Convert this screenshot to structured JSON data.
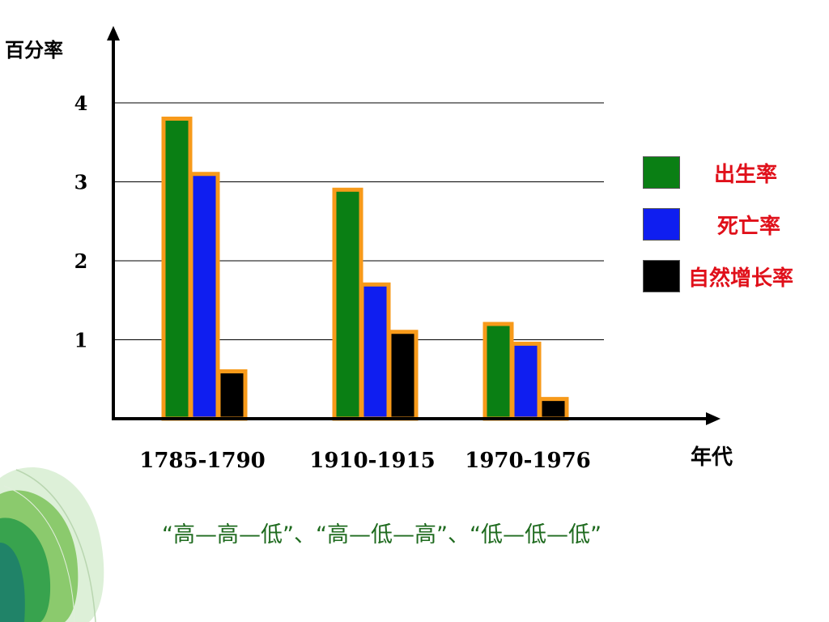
{
  "caption": "“高—高—低”、“高—低—高”、“低—低—低”",
  "chart_data": {
    "type": "bar",
    "categories": [
      "1785-1790",
      "1910-1915",
      "1970-1976"
    ],
    "series": [
      {
        "name": "出生率",
        "values": [
          3.8,
          2.9,
          1.2
        ],
        "color": "#0a7f14"
      },
      {
        "name": "死亡率",
        "values": [
          3.1,
          1.7,
          0.95
        ],
        "color": "#0f1ef0"
      },
      {
        "name": "自然增长率",
        "values": [
          0.6,
          1.1,
          0.25
        ],
        "color": "#000000"
      }
    ],
    "bar_border_color": "#f79a1a",
    "legend_text_color": "#e0101a",
    "ylabel": "百分率",
    "xlabel": "年代",
    "yticks": [
      "1",
      "2",
      "3",
      "4"
    ],
    "ylim": [
      0,
      4
    ],
    "grid": true,
    "legend_position": "right"
  }
}
